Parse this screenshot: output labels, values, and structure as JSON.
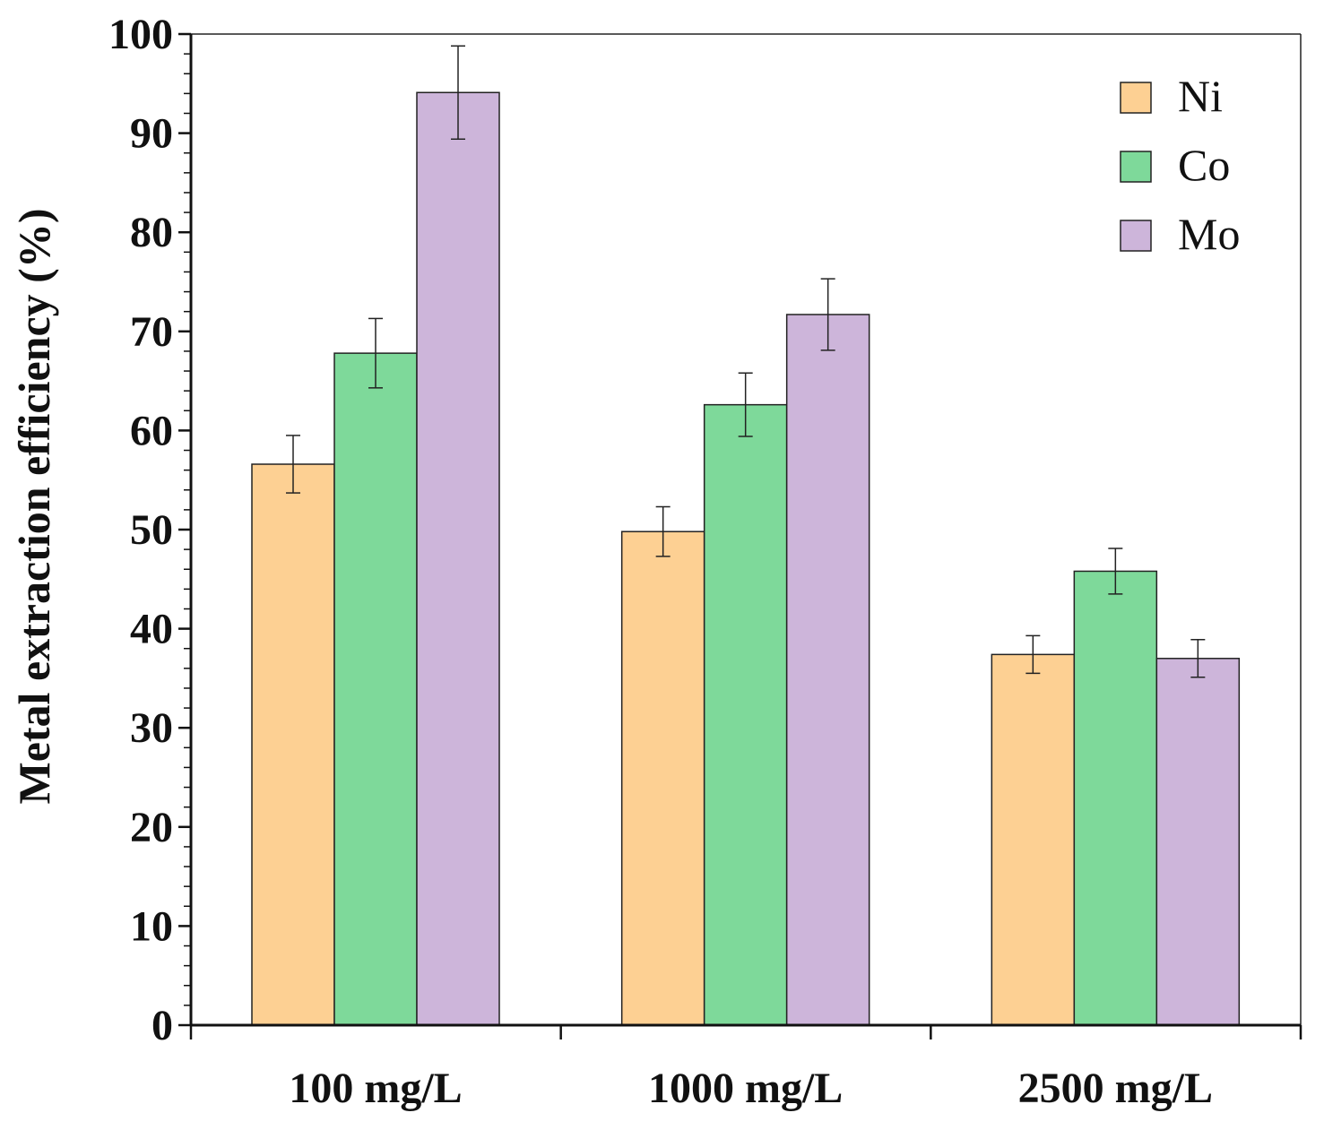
{
  "chart_data": {
    "type": "bar",
    "title": "",
    "xlabel": "",
    "ylabel": "Metal extraction efficiency (%)",
    "ylim": [
      0,
      100
    ],
    "yticks": [
      0,
      10,
      20,
      30,
      40,
      50,
      60,
      70,
      80,
      90,
      100
    ],
    "ytick_labels": [
      "0",
      "10",
      "20",
      "30",
      "40",
      "50",
      "60",
      "70",
      "80",
      "90",
      "100"
    ],
    "y_minor_step": 2,
    "categories": [
      "100 mg/L",
      "1000 mg/L",
      "2500 mg/L"
    ],
    "series": [
      {
        "name": "Ni",
        "color": "#FDD093",
        "values": [
          56.6,
          49.8,
          37.4
        ],
        "errors": [
          2.9,
          2.5,
          1.9
        ]
      },
      {
        "name": "Co",
        "color": "#7ED99A",
        "values": [
          67.8,
          62.6,
          45.8
        ],
        "errors": [
          3.5,
          3.2,
          2.3
        ]
      },
      {
        "name": "Mo",
        "color": "#CDB5DA",
        "values": [
          94.1,
          71.7,
          37.0
        ],
        "errors": [
          4.7,
          3.6,
          1.9
        ]
      }
    ],
    "legend_position": "top-right",
    "grid": false
  }
}
